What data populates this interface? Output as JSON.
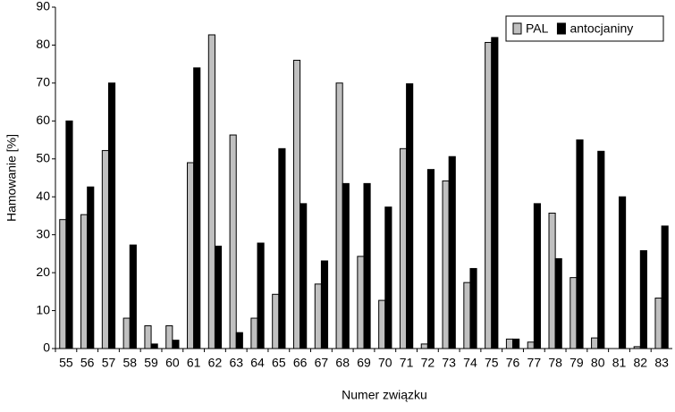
{
  "chart_data": {
    "type": "bar",
    "x_label": "Numer związku",
    "y_label": "Hamowanie [%]",
    "categories": [
      "55",
      "56",
      "57",
      "58",
      "59",
      "60",
      "61",
      "62",
      "63",
      "64",
      "65",
      "66",
      "67",
      "68",
      "69",
      "70",
      "71",
      "72",
      "73",
      "74",
      "75",
      "76",
      "77",
      "78",
      "79",
      "80",
      "81",
      "82",
      "83"
    ],
    "series": [
      {
        "name": "PAL",
        "color": "#c0c0c0",
        "values": [
          34,
          35.3,
          52.2,
          8,
          6,
          6,
          49,
          82.7,
          56.3,
          8,
          14.3,
          76,
          17,
          70,
          24.3,
          12.7,
          52.7,
          1.2,
          44.2,
          17.4,
          80.7,
          2.5,
          1.7,
          35.7,
          18.7,
          2.8,
          0,
          0.5,
          13.3
        ]
      },
      {
        "name": "antocjaniny",
        "color": "#000000",
        "values": [
          60,
          42.6,
          70,
          27.3,
          1.2,
          2.2,
          74,
          27,
          4.2,
          27.8,
          52.7,
          38.2,
          23.1,
          43.5,
          43.5,
          37.3,
          69.8,
          47.2,
          50.6,
          21.1,
          82,
          2.5,
          38.2,
          23.7,
          55,
          52,
          40,
          25.8,
          32.3
        ]
      }
    ],
    "ylim": [
      0,
      90
    ],
    "yticks": [
      0,
      10,
      20,
      30,
      40,
      50,
      60,
      70,
      80,
      90
    ],
    "legend": "top-right"
  }
}
